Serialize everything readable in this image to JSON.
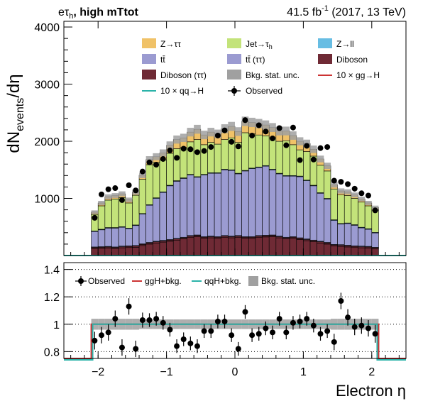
{
  "header": {
    "channel": "eτ",
    "channel_sub": "h",
    "selection": ", high mTtot",
    "lumi": "41.5 fb",
    "lumi_sup": "-1",
    "lumi_rest": " (2017, 13 TeV)"
  },
  "chart_data": [
    {
      "type": "bar",
      "stacked": true,
      "ylabel": "dN",
      "ylabel_sub": "events",
      "ylabel_rest": "/dη",
      "xlim": [
        -2.5,
        2.5
      ],
      "ylim": [
        0,
        4100
      ],
      "ytick_labels": [
        "1000",
        "2000",
        "3000",
        "4000"
      ],
      "yticks": [
        1000,
        2000,
        3000,
        4000
      ],
      "colors": {
        "ztt": "#f0c268",
        "jet": "#c3e37a",
        "zll": "#67bde3",
        "tt": "#9b9bd1",
        "ttt": "#9b9bd1",
        "diboson": "#6f2a35",
        "dibosontt": "#6f2a35",
        "unc": "#a0a0a0",
        "gg": "#cc3333",
        "qq": "#2bb3a9"
      },
      "legend_placement": "top",
      "legend": [
        {
          "key": "ztt",
          "label": "Z→ττ",
          "kind": "box"
        },
        {
          "key": "jet",
          "label": "Jet→τ",
          "sub": "h",
          "kind": "box"
        },
        {
          "key": "zll",
          "label": "Z→ll",
          "kind": "box"
        },
        {
          "key": "tt",
          "label": "tt̄",
          "kind": "box"
        },
        {
          "key": "ttt",
          "label": "tt̄ (ττ)",
          "kind": "box"
        },
        {
          "key": "diboson",
          "label": "Diboson",
          "kind": "box"
        },
        {
          "key": "dibosontt",
          "label": "Diboson (ττ)",
          "kind": "box"
        },
        {
          "key": "unc",
          "label": "Bkg. stat. unc.",
          "kind": "box"
        },
        {
          "key": "gg",
          "label": "10 × gg→H",
          "kind": "line"
        },
        {
          "key": "qq",
          "label": "10 × qq→H",
          "kind": "line"
        },
        {
          "key": "obs",
          "label": "Observed",
          "kind": "marker"
        }
      ],
      "bin_edges": [
        -2.1,
        -2.0,
        -1.9,
        -1.8,
        -1.7,
        -1.6,
        -1.5,
        -1.4,
        -1.3,
        -1.2,
        -1.1,
        -1.0,
        -0.9,
        -0.8,
        -0.7,
        -0.6,
        -0.5,
        -0.4,
        -0.3,
        -0.2,
        -0.1,
        0.0,
        0.1,
        0.2,
        0.3,
        0.4,
        0.5,
        0.6,
        0.7,
        0.8,
        0.9,
        1.0,
        1.1,
        1.2,
        1.3,
        1.4,
        1.5,
        1.6,
        1.7,
        1.8,
        1.9,
        2.0,
        2.1
      ],
      "series": [
        {
          "key": "diboson",
          "values": [
            120,
            125,
            130,
            120,
            135,
            140,
            145,
            175,
            200,
            220,
            235,
            250,
            270,
            290,
            320,
            330,
            300,
            310,
            300,
            320,
            310,
            320,
            300,
            300,
            320,
            325,
            330,
            310,
            290,
            300,
            280,
            260,
            240,
            220,
            200,
            165,
            160,
            150,
            140,
            135,
            130,
            115
          ]
        },
        {
          "key": "dibosontt",
          "values": [
            20,
            20,
            20,
            20,
            20,
            20,
            20,
            20,
            20,
            20,
            20,
            20,
            20,
            20,
            20,
            20,
            20,
            20,
            20,
            20,
            20,
            20,
            20,
            20,
            20,
            20,
            20,
            20,
            20,
            20,
            20,
            20,
            20,
            20,
            20,
            20,
            20,
            20,
            20,
            20,
            20,
            20
          ]
        },
        {
          "key": "ttt",
          "values": [
            10,
            10,
            10,
            10,
            10,
            10,
            10,
            10,
            10,
            10,
            10,
            10,
            10,
            10,
            10,
            10,
            10,
            10,
            10,
            10,
            10,
            10,
            10,
            10,
            10,
            10,
            10,
            10,
            10,
            10,
            10,
            10,
            10,
            10,
            10,
            10,
            10,
            10,
            10,
            10,
            10,
            10
          ]
        },
        {
          "key": "tt",
          "values": [
            270,
            295,
            320,
            330,
            330,
            300,
            350,
            520,
            650,
            750,
            840,
            940,
            1000,
            1030,
            1060,
            1010,
            1080,
            1100,
            1110,
            1150,
            1150,
            1080,
            1150,
            1190,
            1190,
            1210,
            1140,
            1090,
            1070,
            1060,
            1070,
            1020,
            950,
            840,
            760,
            420,
            360,
            380,
            360,
            320,
            300,
            250
          ]
        },
        {
          "key": "zll",
          "values": [
            10,
            10,
            10,
            10,
            10,
            10,
            10,
            10,
            10,
            10,
            10,
            10,
            10,
            10,
            10,
            10,
            10,
            10,
            10,
            10,
            10,
            10,
            10,
            10,
            10,
            10,
            10,
            10,
            10,
            10,
            10,
            10,
            10,
            10,
            10,
            10,
            10,
            10,
            10,
            10,
            10,
            10
          ]
        },
        {
          "key": "jet",
          "values": [
            290,
            410,
            480,
            500,
            510,
            440,
            520,
            600,
            700,
            620,
            560,
            560,
            560,
            530,
            570,
            650,
            520,
            530,
            500,
            520,
            560,
            540,
            660,
            600,
            560,
            520,
            550,
            560,
            610,
            540,
            460,
            500,
            510,
            480,
            480,
            540,
            500,
            480,
            460,
            440,
            400,
            390
          ]
        },
        {
          "key": "ztt",
          "values": [
            40,
            50,
            60,
            60,
            65,
            55,
            55,
            70,
            90,
            100,
            120,
            140,
            160,
            170,
            170,
            180,
            170,
            180,
            180,
            190,
            200,
            190,
            200,
            200,
            200,
            190,
            180,
            180,
            170,
            160,
            150,
            140,
            120,
            110,
            90,
            75,
            70,
            65,
            60,
            55,
            50,
            45
          ]
        }
      ],
      "uncertainty_frac": [
        0.04,
        0.04,
        0.04,
        0.04,
        0.04,
        0.04,
        0.04,
        0.035,
        0.035,
        0.035,
        0.035,
        0.035,
        0.035,
        0.035,
        0.035,
        0.035,
        0.035,
        0.035,
        0.035,
        0.035,
        0.035,
        0.035,
        0.035,
        0.035,
        0.035,
        0.035,
        0.035,
        0.035,
        0.035,
        0.035,
        0.035,
        0.035,
        0.035,
        0.035,
        0.035,
        0.04,
        0.04,
        0.04,
        0.04,
        0.04,
        0.04,
        0.04
      ],
      "observed": {
        "label": "Observed",
        "x": [
          -2.05,
          -1.95,
          -1.85,
          -1.75,
          -1.65,
          -1.55,
          -1.45,
          -1.35,
          -1.25,
          -1.15,
          -1.05,
          -0.95,
          -0.85,
          -0.75,
          -0.65,
          -0.55,
          -0.45,
          -0.35,
          -0.25,
          -0.15,
          -0.05,
          0.05,
          0.15,
          0.25,
          0.35,
          0.45,
          0.55,
          0.65,
          0.75,
          0.85,
          0.95,
          1.05,
          1.15,
          1.25,
          1.35,
          1.45,
          1.55,
          1.65,
          1.75,
          1.85,
          1.95,
          2.05
        ],
        "y": [
          660,
          1070,
          1160,
          1180,
          970,
          1230,
          1140,
          1470,
          1630,
          1590,
          1690,
          1840,
          1710,
          1870,
          1860,
          1810,
          1830,
          1900,
          2100,
          2190,
          1990,
          1910,
          2370,
          2100,
          2280,
          2170,
          2050,
          2230,
          1930,
          2240,
          1670,
          1920,
          1680,
          1880,
          1900,
          1310,
          1290,
          1250,
          1170,
          1090,
          1050,
          790
        ],
        "err": [
          26,
          33,
          34,
          34,
          31,
          35,
          34,
          38,
          40,
          40,
          41,
          43,
          41,
          43,
          43,
          43,
          43,
          44,
          46,
          47,
          45,
          44,
          49,
          46,
          48,
          47,
          45,
          47,
          44,
          47,
          41,
          44,
          41,
          43,
          44,
          36,
          36,
          35,
          34,
          33,
          32,
          28
        ]
      }
    },
    {
      "type": "scatter",
      "xlabel": "Electron  η",
      "xlim": [
        -2.5,
        2.5
      ],
      "ylim": [
        0.75,
        1.45
      ],
      "xticks": [
        -2,
        -1,
        0,
        1,
        2
      ],
      "xtick_labels": [
        "−2",
        "−1",
        "0",
        "1",
        "2"
      ],
      "yticks": [
        0.8,
        1.0,
        1.2,
        1.4
      ],
      "ytick_labels": [
        "0.8",
        "1",
        "1.2",
        "1.4"
      ],
      "grid_y": [
        0.8,
        1.0,
        1.2,
        1.4
      ],
      "legend": [
        {
          "key": "obs",
          "label": "Observed",
          "kind": "marker"
        },
        {
          "key": "gg",
          "label": "ggH+bkg.",
          "kind": "line"
        },
        {
          "key": "qq",
          "label": "qqH+bkg.",
          "kind": "line"
        },
        {
          "key": "unc",
          "label": "Bkg. stat. unc.",
          "kind": "box"
        }
      ],
      "ratio": {
        "x": [
          -2.05,
          -1.95,
          -1.85,
          -1.75,
          -1.65,
          -1.55,
          -1.45,
          -1.35,
          -1.25,
          -1.15,
          -1.05,
          -0.95,
          -0.85,
          -0.75,
          -0.65,
          -0.55,
          -0.45,
          -0.35,
          -0.25,
          -0.15,
          -0.05,
          0.05,
          0.15,
          0.25,
          0.35,
          0.45,
          0.55,
          0.65,
          0.75,
          0.85,
          0.95,
          1.05,
          1.15,
          1.25,
          1.35,
          1.45,
          1.55,
          1.65,
          1.75,
          1.85,
          1.95,
          2.05
        ],
        "y": [
          0.88,
          0.92,
          0.94,
          1.04,
          0.83,
          1.13,
          0.82,
          1.03,
          1.03,
          1.04,
          1.01,
          0.96,
          0.84,
          0.89,
          0.86,
          0.84,
          0.95,
          0.95,
          1.02,
          1.02,
          0.92,
          0.82,
          1.09,
          0.92,
          0.93,
          0.97,
          0.94,
          1.04,
          0.94,
          1.01,
          1.02,
          1.04,
          0.99,
          0.93,
          0.95,
          0.87,
          1.17,
          1.05,
          0.98,
          0.99,
          0.97,
          0.93
        ],
        "err": [
          0.065,
          0.06,
          0.06,
          0.06,
          0.06,
          0.06,
          0.06,
          0.055,
          0.05,
          0.05,
          0.05,
          0.05,
          0.05,
          0.05,
          0.05,
          0.05,
          0.05,
          0.05,
          0.05,
          0.05,
          0.05,
          0.05,
          0.05,
          0.05,
          0.05,
          0.05,
          0.05,
          0.05,
          0.05,
          0.05,
          0.05,
          0.05,
          0.05,
          0.05,
          0.05,
          0.06,
          0.06,
          0.06,
          0.06,
          0.06,
          0.06,
          0.065
        ]
      }
    }
  ]
}
